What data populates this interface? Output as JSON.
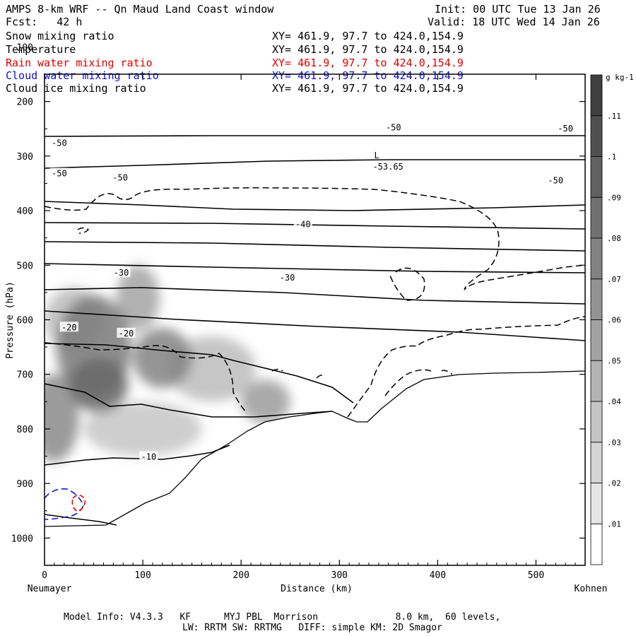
{
  "header": {
    "title": "AMPS 8-km WRF -- Qn Maud Land Coast window",
    "init": "Init: 00 UTC Tue 13 Jan 26",
    "fcst": "Fcst:   42 h",
    "valid": "Valid: 18 UTC Wed 14 Jan 26"
  },
  "fields": [
    {
      "name": "Snow mixing ratio",
      "xy": "XY= 461.9, 97.7 to 424.0,154.9",
      "color": "#000000"
    },
    {
      "name": "Temperature",
      "xy": "XY= 461.9, 97.7 to 424.0,154.9",
      "color": "#000000"
    },
    {
      "name": "Rain water mixing ratio",
      "xy": "XY= 461.9, 97.7 to 424.0,154.9",
      "color": "#e00000"
    },
    {
      "name": "Cloud water mixing ratio",
      "xy": "XY= 461.9, 97.7 to 424.0,154.9",
      "color": "#1010d0"
    },
    {
      "name": "Cloud ice mixing ratio",
      "xy": "XY= 461.9, 97.7 to 424.0,154.9",
      "color": "#000000"
    }
  ],
  "footer": {
    "line1": "Model Info: V4.3.3   KF      MYJ PBL  Morrison              8.0 km,  60 levels,",
    "line2": "LW: RRTM SW: RRTMG   DIFF: simple KM: 2D Smagor"
  },
  "chart_data": {
    "type": "heatmap",
    "title": "AMPS 8-km WRF -- Qn Maud Land Coast window",
    "xlabel": "Distance (km)",
    "ylabel": "Pressure (hPa)",
    "x_left_label": "Neumayer",
    "x_right_label": "Kohnen",
    "xlim": [
      0,
      550
    ],
    "ylim": [
      1050,
      150
    ],
    "x_ticks": [
      0,
      100,
      200,
      300,
      400,
      500
    ],
    "y_ticks": [
      200,
      300,
      400,
      500,
      600,
      700,
      800,
      900,
      1000
    ],
    "colorbar": {
      "unit": "g kg-1",
      "levels": [
        0.01,
        0.02,
        0.03,
        0.04,
        0.05,
        0.06,
        0.07,
        0.08,
        0.09,
        0.1,
        0.11
      ],
      "labels": [
        ".01",
        ".02",
        ".03",
        ".04",
        ".05",
        ".06",
        ".07",
        ".08",
        ".09",
        ".1",
        ".11"
      ]
    },
    "snow_blobs": [
      {
        "x": 50,
        "p": 650,
        "rx": 38,
        "ry": 95,
        "v": 0.08
      },
      {
        "x": 55,
        "p": 720,
        "rx": 30,
        "ry": 50,
        "v": 0.09
      },
      {
        "x": 120,
        "p": 670,
        "rx": 30,
        "ry": 55,
        "v": 0.075
      },
      {
        "x": 95,
        "p": 560,
        "rx": 22,
        "ry": 60,
        "v": 0.055
      },
      {
        "x": 225,
        "p": 750,
        "rx": 25,
        "ry": 40,
        "v": 0.06
      },
      {
        "x": 10,
        "p": 780,
        "rx": 25,
        "ry": 80,
        "v": 0.07
      },
      {
        "x": 170,
        "p": 690,
        "rx": 45,
        "ry": 60,
        "v": 0.04
      },
      {
        "x": 100,
        "p": 800,
        "rx": 60,
        "ry": 50,
        "v": 0.035
      },
      {
        "x": 30,
        "p": 600,
        "rx": 30,
        "ry": 60,
        "v": 0.04
      }
    ],
    "temperature_labels": [
      {
        "x": 15,
        "p": 276,
        "text": "-50"
      },
      {
        "x": 355,
        "p": 248,
        "text": "-50"
      },
      {
        "x": 530,
        "p": 250,
        "text": "-50"
      },
      {
        "x": 15,
        "p": 332,
        "text": "-50"
      },
      {
        "x": 77,
        "p": 340,
        "text": "-50"
      },
      {
        "x": 520,
        "p": 345,
        "text": "-50"
      },
      {
        "x": 263,
        "p": 425,
        "text": "-40"
      },
      {
        "x": 78,
        "p": 514,
        "text": "-30"
      },
      {
        "x": 247,
        "p": 523,
        "text": "-30"
      },
      {
        "x": 25,
        "p": 614,
        "text": "-20"
      },
      {
        "x": 83,
        "p": 625,
        "text": "-20"
      },
      {
        "x": 106,
        "p": 851,
        "text": "-10"
      }
    ],
    "low_marker": {
      "x": 338,
      "p": 304,
      "symbol": "L",
      "value": "-53.65"
    }
  }
}
